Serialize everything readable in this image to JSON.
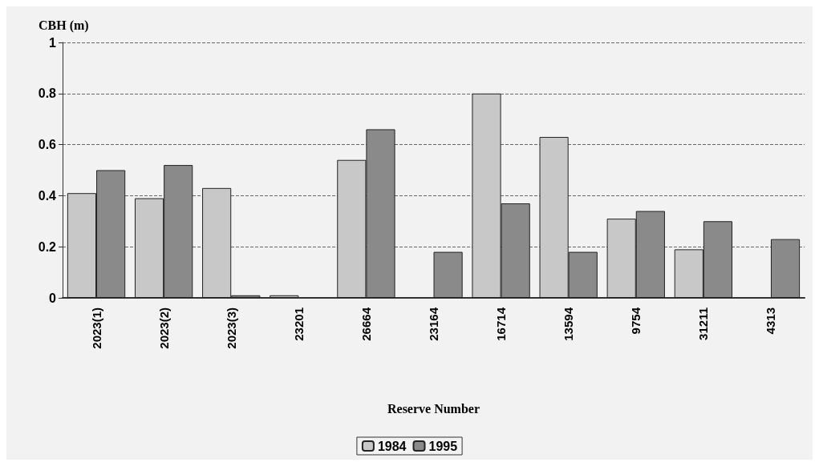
{
  "chart_data": {
    "type": "bar",
    "ylabel": "CBH (m)",
    "xlabel": "Reserve Number",
    "categories": [
      "2023(1)",
      "2023(2)",
      "2023(3)",
      "23201",
      "26664",
      "23164",
      "16714",
      "13594",
      "9754",
      "31211",
      "4313"
    ],
    "series": [
      {
        "name": "1984",
        "color": "#c8c8c8",
        "values": [
          0.41,
          0.39,
          0.43,
          0.01,
          0.54,
          null,
          0.8,
          0.63,
          0.31,
          0.19,
          null
        ]
      },
      {
        "name": "1995",
        "color": "#8a8a8a",
        "values": [
          0.5,
          0.52,
          0.01,
          null,
          0.66,
          0.18,
          0.37,
          0.18,
          0.34,
          0.3,
          0.23
        ]
      }
    ],
    "ylim": [
      0,
      1
    ],
    "yticks": [
      0,
      0.2,
      0.4,
      0.6,
      0.8,
      1
    ],
    "grid": "y",
    "legend": "bottom"
  }
}
